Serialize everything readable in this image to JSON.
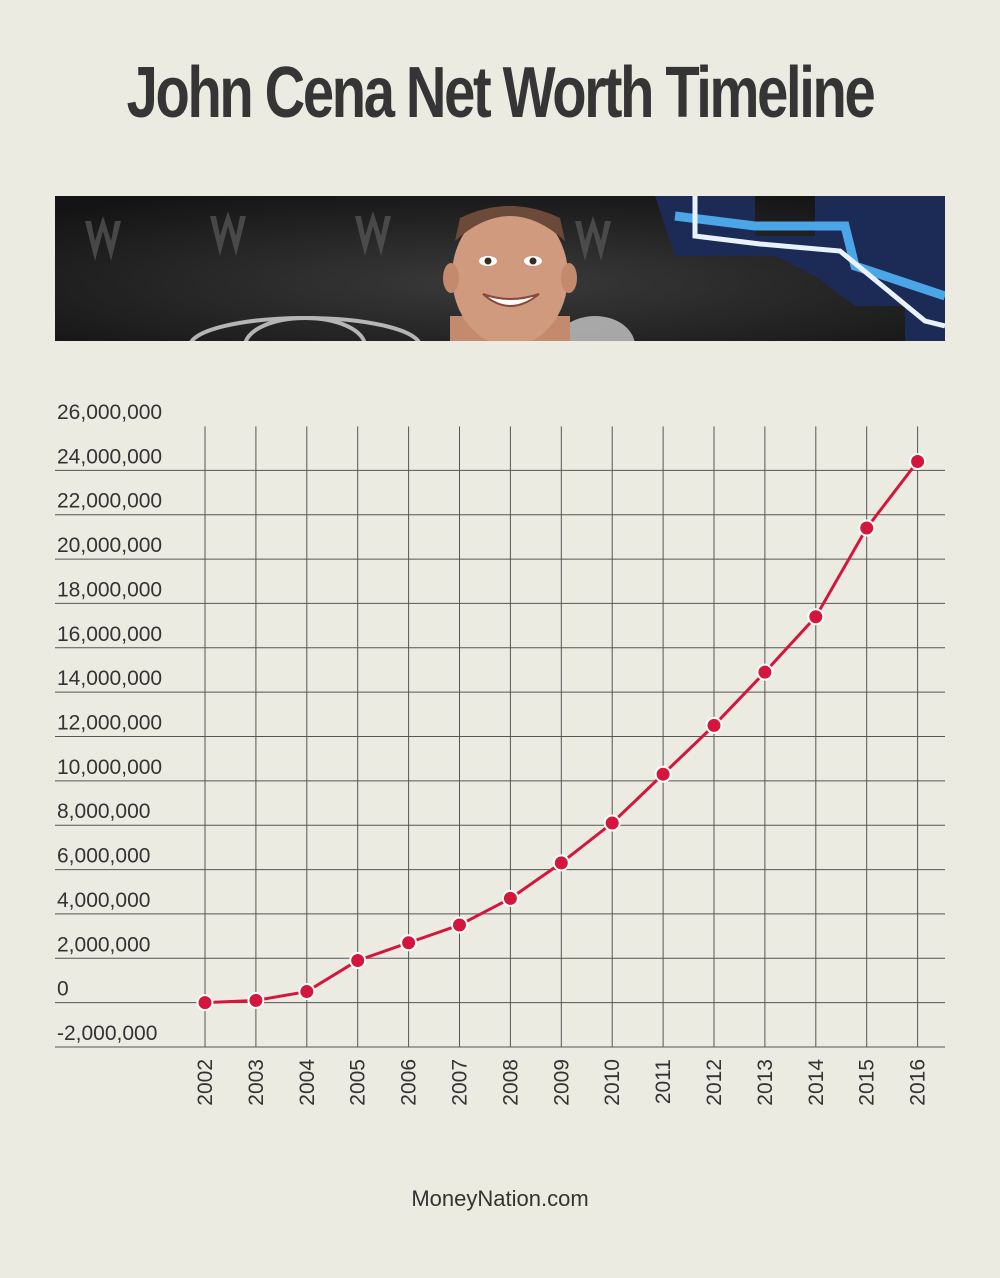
{
  "title": "John Cena Net Worth Timeline",
  "footer": "MoneyNation.com",
  "banner": {
    "subject": "john-cena-photo"
  },
  "colors": {
    "background": "#ecebe2",
    "line": "#d4163c",
    "grid": "#555555"
  },
  "chart_data": {
    "type": "line",
    "title": "John Cena Net Worth Timeline",
    "xlabel": "",
    "ylabel": "",
    "x": [
      "2002",
      "2003",
      "2004",
      "2005",
      "2006",
      "2007",
      "2008",
      "2009",
      "2010",
      "2011",
      "2012",
      "2013",
      "2014",
      "2015",
      "2016"
    ],
    "series": [
      {
        "values": [
          0,
          100000,
          500000,
          1900000,
          2700000,
          3500000,
          4700000,
          6300000,
          8100000,
          10300000,
          12500000,
          14900000,
          17400000,
          21400000,
          24400000
        ]
      }
    ],
    "ylim": [
      -2000000,
      26000000
    ],
    "yticks": [
      "26,000,000",
      "24,000,000",
      "22,000,000",
      "20,000,000",
      "18,000,000",
      "16,000,000",
      "14,000,000",
      "12,000,000",
      "10,000,000",
      "8,000,000",
      "6,000,000",
      "4,000,000",
      "2,000,000",
      "0",
      "-2,000,000"
    ],
    "grid": true,
    "legend": "none"
  }
}
